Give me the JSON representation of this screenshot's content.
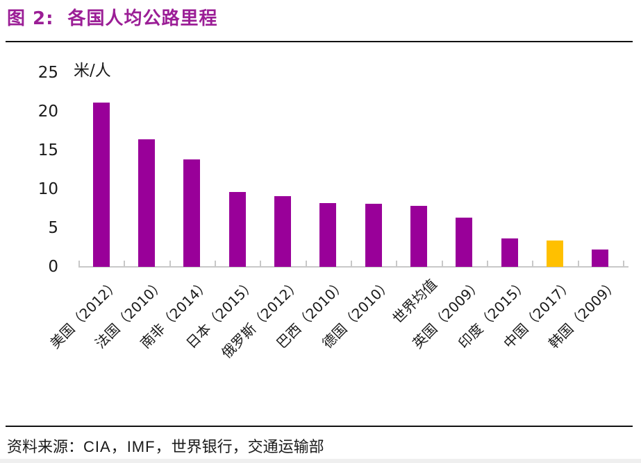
{
  "header": {
    "figure_label": "图 2:",
    "title": "各国人均公路里程"
  },
  "chart_data": {
    "type": "bar",
    "title": "各国人均公路里程",
    "unit_label": "米/人",
    "categories": [
      "美国（2012）",
      "法国（2010）",
      "南非（2014）",
      "日本（2015）",
      "俄罗斯（2012）",
      "巴西（2010）",
      "德国（2010）",
      "世界均值",
      "英国（2009）",
      "印度（2015）",
      "中国（2017）",
      "韩国（2009）"
    ],
    "values": [
      21.2,
      16.4,
      13.8,
      9.6,
      9.1,
      8.2,
      8.1,
      7.9,
      6.3,
      3.7,
      3.4,
      2.2
    ],
    "highlight_index": 10,
    "highlight_category": "中国（2017）",
    "yticks": [
      0,
      5,
      10,
      15,
      20,
      25
    ],
    "ylim": [
      0,
      25
    ],
    "xlabel": "",
    "ylabel": "米/人",
    "grid": false,
    "legend": "none",
    "colors": {
      "bar": "#990099",
      "highlight": "#FFC000",
      "axis": "#C8C8C8",
      "title": "#9B1E96"
    }
  },
  "footer": {
    "prefix": "资料来源：",
    "sources_latin": "CIA，IMF，",
    "sources_cn": "世界银行，交通运输部"
  }
}
